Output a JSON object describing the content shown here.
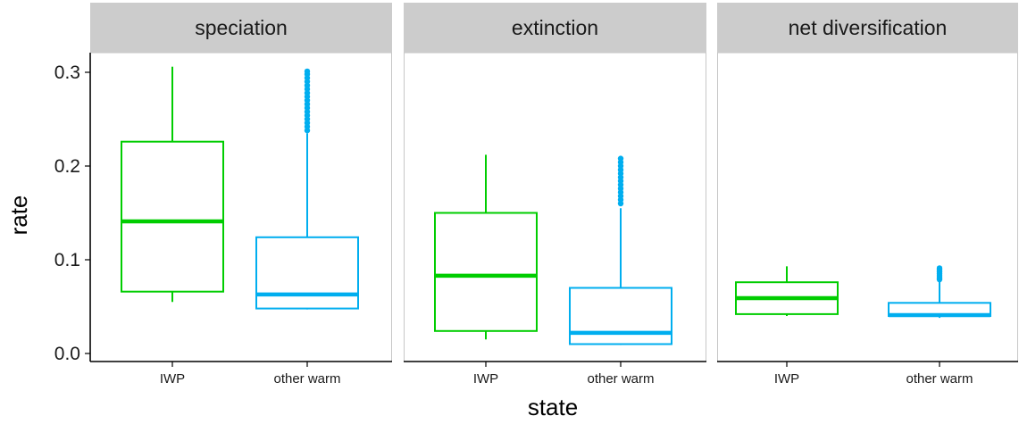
{
  "chart_data": {
    "type": "boxplot",
    "xlabel": "state",
    "ylabel": "rate",
    "ylim": [
      0,
      0.3
    ],
    "y_ticks": [
      "0.0",
      "0.1",
      "0.2",
      "0.3"
    ],
    "y_tick_values": [
      0.0,
      0.1,
      0.2,
      0.3
    ],
    "categories": [
      "IWP",
      "other warm"
    ],
    "colors": {
      "IWP": "#00cd00",
      "other warm": "#00aeef",
      "strip": "#cccccc",
      "panel_border": "#c7c7c7"
    },
    "grid": false,
    "legend": "none",
    "facets": [
      {
        "label": "speciation",
        "boxes": [
          {
            "category": "IWP",
            "whisker_low": 0.055,
            "q1": 0.066,
            "median": 0.141,
            "q3": 0.226,
            "whisker_high": 0.306,
            "outliers": []
          },
          {
            "category": "other warm",
            "whisker_low": 0.047,
            "q1": 0.048,
            "median": 0.063,
            "q3": 0.124,
            "whisker_high": 0.235,
            "outliers": [
              0.238,
              0.242,
              0.246,
              0.25,
              0.254,
              0.258,
              0.262,
              0.266,
              0.27,
              0.274,
              0.278,
              0.282,
              0.286,
              0.29,
              0.294,
              0.298,
              0.301
            ]
          }
        ]
      },
      {
        "label": "extinction",
        "boxes": [
          {
            "category": "IWP",
            "whisker_low": 0.015,
            "q1": 0.024,
            "median": 0.083,
            "q3": 0.15,
            "whisker_high": 0.212,
            "outliers": []
          },
          {
            "category": "other warm",
            "whisker_low": 0.009,
            "q1": 0.01,
            "median": 0.022,
            "q3": 0.07,
            "whisker_high": 0.155,
            "outliers": [
              0.16,
              0.164,
              0.168,
              0.172,
              0.176,
              0.18,
              0.184,
              0.188,
              0.192,
              0.196,
              0.2,
              0.204,
              0.208
            ]
          }
        ]
      },
      {
        "label": "net diversification",
        "boxes": [
          {
            "category": "IWP",
            "whisker_low": 0.04,
            "q1": 0.042,
            "median": 0.059,
            "q3": 0.076,
            "whisker_high": 0.093,
            "outliers": []
          },
          {
            "category": "other warm",
            "whisker_low": 0.038,
            "q1": 0.04,
            "median": 0.041,
            "q3": 0.054,
            "whisker_high": 0.077,
            "outliers": [
              0.079,
              0.081,
              0.083,
              0.085,
              0.087,
              0.089,
              0.091
            ]
          }
        ]
      }
    ]
  }
}
